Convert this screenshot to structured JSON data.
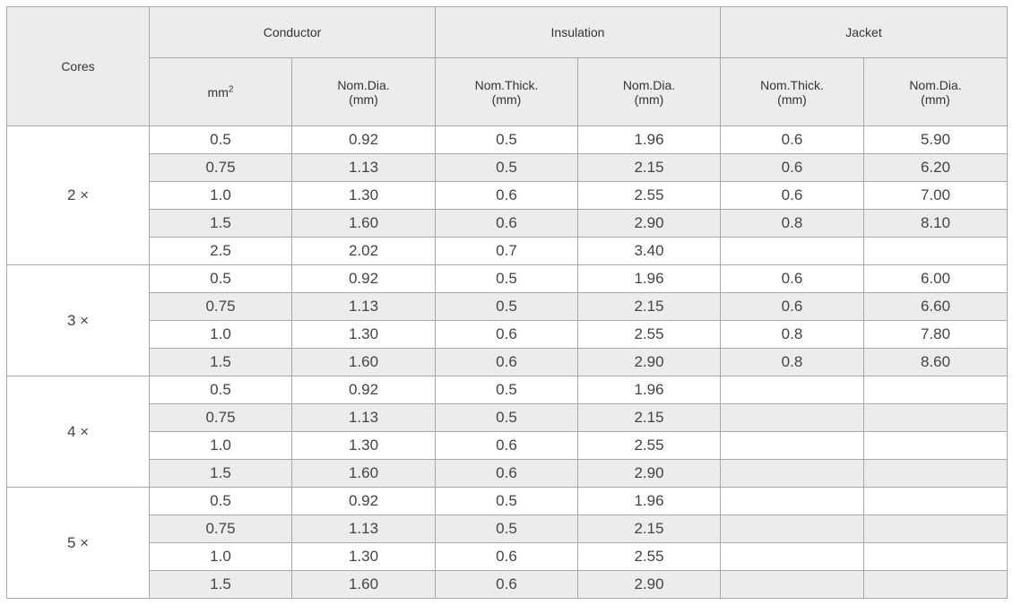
{
  "header": {
    "cores": "Cores",
    "conductor": "Conductor",
    "insulation": "Insulation",
    "jacket": "Jacket",
    "sub": {
      "mm2_base": "mm",
      "mm2_sup": "2",
      "cond_nom_dia": "Nom.Dia.",
      "cond_nom_dia_unit": "(mm)",
      "ins_nom_thick": "Nom.Thick.",
      "ins_nom_thick_unit": "(mm)",
      "ins_nom_dia": "Nom.Dia.",
      "ins_nom_dia_unit": "(mm)",
      "jac_nom_thick": "Nom.Thick.",
      "jac_nom_thick_unit": "(mm)",
      "jac_nom_dia": "Nom.Dia.",
      "jac_nom_dia_unit": "(mm)"
    }
  },
  "groups": [
    {
      "cores": "2 ×",
      "rows": [
        [
          "0.5",
          "0.92",
          "0.5",
          "1.96",
          "0.6",
          "5.90"
        ],
        [
          "0.75",
          "1.13",
          "0.5",
          "2.15",
          "0.6",
          "6.20"
        ],
        [
          "1.0",
          "1.30",
          "0.6",
          "2.55",
          "0.6",
          "7.00"
        ],
        [
          "1.5",
          "1.60",
          "0.6",
          "2.90",
          "0.8",
          "8.10"
        ],
        [
          "2.5",
          "2.02",
          "0.7",
          "3.40",
          "",
          ""
        ]
      ]
    },
    {
      "cores": "3 ×",
      "rows": [
        [
          "0.5",
          "0.92",
          "0.5",
          "1.96",
          "0.6",
          "6.00"
        ],
        [
          "0.75",
          "1.13",
          "0.5",
          "2.15",
          "0.6",
          "6.60"
        ],
        [
          "1.0",
          "1.30",
          "0.6",
          "2.55",
          "0.8",
          "7.80"
        ],
        [
          "1.5",
          "1.60",
          "0.6",
          "2.90",
          "0.8",
          "8.60"
        ]
      ]
    },
    {
      "cores": "4 ×",
      "rows": [
        [
          "0.5",
          "0.92",
          "0.5",
          "1.96",
          "",
          ""
        ],
        [
          "0.75",
          "1.13",
          "0.5",
          "2.15",
          "",
          ""
        ],
        [
          "1.0",
          "1.30",
          "0.6",
          "2.55",
          "",
          ""
        ],
        [
          "1.5",
          "1.60",
          "0.6",
          "2.90",
          "",
          ""
        ]
      ]
    },
    {
      "cores": "5 ×",
      "rows": [
        [
          "0.5",
          "0.92",
          "0.5",
          "1.96",
          "",
          ""
        ],
        [
          "0.75",
          "1.13",
          "0.5",
          "2.15",
          "",
          ""
        ],
        [
          "1.0",
          "1.30",
          "0.6",
          "2.55",
          "",
          ""
        ],
        [
          "1.5",
          "1.60",
          "0.6",
          "2.90",
          "",
          ""
        ]
      ]
    }
  ]
}
